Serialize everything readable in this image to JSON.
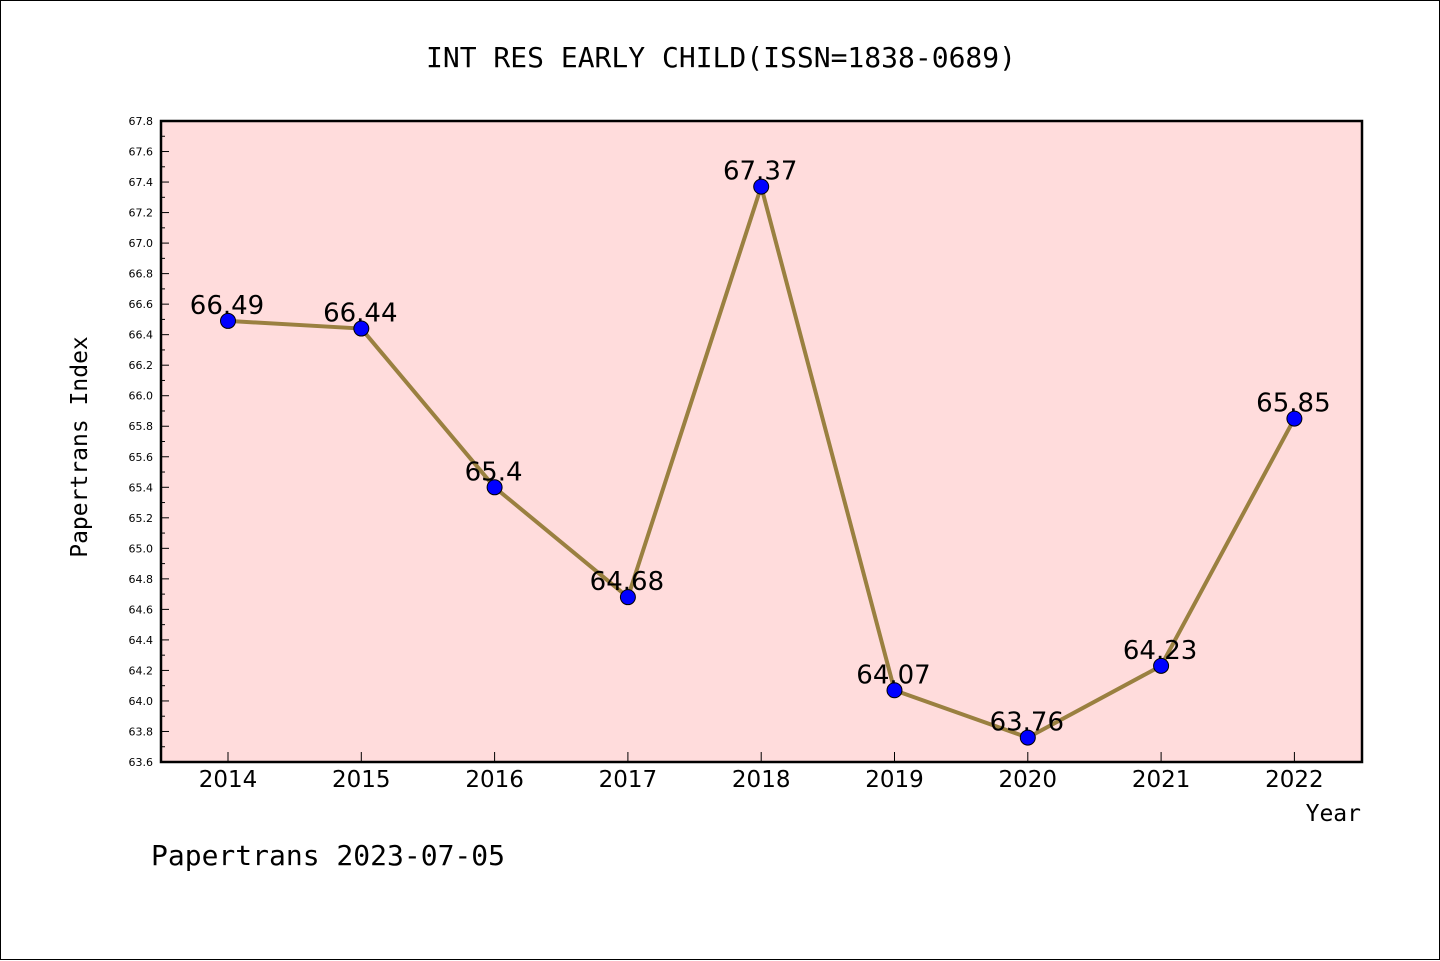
{
  "chart_data": {
    "type": "line",
    "title": "INT RES EARLY CHILD(ISSN=1838-0689)",
    "xlabel": "Year",
    "ylabel": "Papertrans Index",
    "categories": [
      "2014",
      "2015",
      "2016",
      "2017",
      "2018",
      "2019",
      "2020",
      "2021",
      "2022"
    ],
    "values": [
      66.49,
      66.44,
      65.4,
      64.68,
      67.37,
      64.07,
      63.76,
      64.23,
      65.85
    ],
    "data_labels": [
      "66.49",
      "66.44",
      "65.4",
      "64.68",
      "67.37",
      "64.07",
      "63.76",
      "64.23",
      "65.85"
    ],
    "ylim": [
      63.6,
      67.8
    ],
    "yticks": [
      "63.6",
      "63.8",
      "64.0",
      "64.2",
      "64.4",
      "64.6",
      "64.8",
      "65.0",
      "65.2",
      "65.4",
      "65.6",
      "65.8",
      "66.0",
      "66.2",
      "66.4",
      "66.6",
      "66.8",
      "67.0",
      "67.2",
      "67.4",
      "67.6",
      "67.8"
    ],
    "grid": false,
    "colors": {
      "plot_background": "#ffdcdc",
      "line": "#9a8040",
      "marker": "#0000ff"
    }
  },
  "footer": "Papertrans 2023-07-05"
}
